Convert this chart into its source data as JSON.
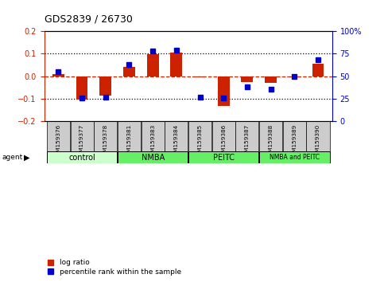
{
  "title": "GDS2839 / 26730",
  "samples": [
    "GSM159376",
    "GSM159377",
    "GSM159378",
    "GSM159381",
    "GSM159383",
    "GSM159384",
    "GSM159385",
    "GSM159386",
    "GSM159387",
    "GSM159388",
    "GSM159389",
    "GSM159390"
  ],
  "log_ratios": [
    0.01,
    -0.105,
    -0.085,
    0.04,
    0.098,
    0.105,
    -0.005,
    -0.13,
    -0.025,
    -0.03,
    -0.005,
    0.055
  ],
  "percentile_ranks": [
    55,
    26,
    27,
    63,
    78,
    79,
    27,
    26,
    38,
    36,
    50,
    68
  ],
  "ylim_left": [
    -0.2,
    0.2
  ],
  "ylim_right": [
    0,
    100
  ],
  "yticks_left": [
    -0.2,
    -0.1,
    0.0,
    0.1,
    0.2
  ],
  "yticks_right": [
    0,
    25,
    50,
    75,
    100
  ],
  "ytick_labels_right": [
    "0",
    "25",
    "50",
    "75",
    "100%"
  ],
  "groups": [
    {
      "label": "control",
      "start": 0,
      "end": 3,
      "color": "#ccffcc"
    },
    {
      "label": "NMBA",
      "start": 3,
      "end": 6,
      "color": "#66ee66"
    },
    {
      "label": "PEITC",
      "start": 6,
      "end": 9,
      "color": "#66ee66"
    },
    {
      "label": "NMBA and PEITC",
      "start": 9,
      "end": 12,
      "color": "#66ee66"
    }
  ],
  "bar_color_red": "#cc2200",
  "bar_color_blue": "#0000cc",
  "zero_line_color": "#cc2200",
  "dotted_line_color": "#000000",
  "bg_color": "#ffffff",
  "plot_bg_color": "#ffffff",
  "sample_box_color": "#cccccc",
  "bar_width": 0.5,
  "agent_label": "agent",
  "legend_items": [
    "log ratio",
    "percentile rank within the sample"
  ]
}
